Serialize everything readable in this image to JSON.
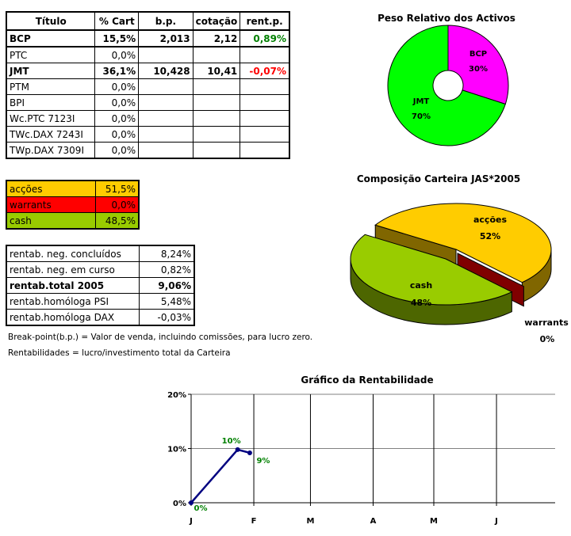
{
  "holdings": {
    "headers": [
      "Título",
      "% Cart",
      "b.p.",
      "cotação",
      "rent.p."
    ],
    "rows": [
      {
        "titulo": "BCP",
        "cart": "15,5%",
        "bp": "2,013",
        "cotacao": "2,12",
        "rent": "0,89%",
        "bold": true,
        "rent_color": "#008000"
      },
      {
        "titulo": "PTC",
        "cart": "0,0%",
        "bp": "",
        "cotacao": "",
        "rent": ""
      },
      {
        "titulo": "JMT",
        "cart": "36,1%",
        "bp": "10,428",
        "cotacao": "10,41",
        "rent": "-0,07%",
        "bold": true,
        "rent_color": "#ff0000"
      },
      {
        "titulo": "PTM",
        "cart": "0,0%",
        "bp": "",
        "cotacao": "",
        "rent": ""
      },
      {
        "titulo": "BPI",
        "cart": "0,0%",
        "bp": "",
        "cotacao": "",
        "rent": ""
      },
      {
        "titulo": "Wc.PTC 7123I",
        "cart": "0,0%",
        "bp": "",
        "cotacao": "",
        "rent": ""
      },
      {
        "titulo": "TWc.DAX 7243I",
        "cart": "0,0%",
        "bp": "",
        "cotacao": "",
        "rent": ""
      },
      {
        "titulo": "TWp.DAX 7309I",
        "cart": "0,0%",
        "bp": "",
        "cotacao": "",
        "rent": ""
      }
    ]
  },
  "allocation": [
    {
      "label": "acções",
      "value": "51,5%",
      "color": "#ffcc00"
    },
    {
      "label": "warrants",
      "value": "0,0%",
      "color": "#ff0000"
    },
    {
      "label": "cash",
      "value": "48,5%",
      "color": "#99cc00"
    }
  ],
  "returns": [
    {
      "label": "rentab. neg. concluídos",
      "value": "8,24%"
    },
    {
      "label": "rentab. neg. em curso",
      "value": "0,82%"
    },
    {
      "label": "rentab.total 2005",
      "value": "9,06%",
      "bold": true
    },
    {
      "label": "rentab.homóloga PSI",
      "value": "5,48%"
    },
    {
      "label": "rentab.homóloga DAX",
      "value": "-0,03%"
    }
  ],
  "notes": [
    "Break-point(b.p.) = Valor de venda, incluindo comissões, para lucro zero.",
    "Rentabilidades = lucro/investimento total da Carteira"
  ],
  "chart_data": [
    {
      "type": "pie",
      "variant": "doughnut",
      "title": "Peso Relativo dos Activos",
      "categories": [
        "BCP",
        "JMT"
      ],
      "values": [
        30,
        70
      ],
      "labels": [
        "30%",
        "70%"
      ],
      "colors": [
        "#ff00ff",
        "#00ff00"
      ]
    },
    {
      "type": "pie",
      "variant": "3d-exploded",
      "title": "Composição Carteira JAS*2005",
      "categories": [
        "acções",
        "warrants",
        "cash"
      ],
      "values": [
        52,
        0,
        48
      ],
      "labels": [
        "52%",
        "0%",
        "48%"
      ],
      "colors": [
        "#ffcc00",
        "#800000",
        "#99cc00"
      ]
    },
    {
      "type": "line",
      "title": "Gráfico da Rentabilidade",
      "x": [
        "2005-01-01",
        "2005-01-24",
        "2005-01-30"
      ],
      "y": [
        0,
        9.8,
        9.2
      ],
      "data_labels": [
        "0%",
        "10%",
        "9%"
      ],
      "xticks": [
        "J",
        "F",
        "M",
        "A",
        "M",
        "J"
      ],
      "yticks": [
        "0%",
        "10%",
        "20%"
      ],
      "ylim": [
        0,
        20
      ],
      "xlim": [
        "2005-01-01",
        "2005-06-30"
      ],
      "grid": true,
      "line_color": "#000080",
      "label_color": "#008000"
    }
  ]
}
